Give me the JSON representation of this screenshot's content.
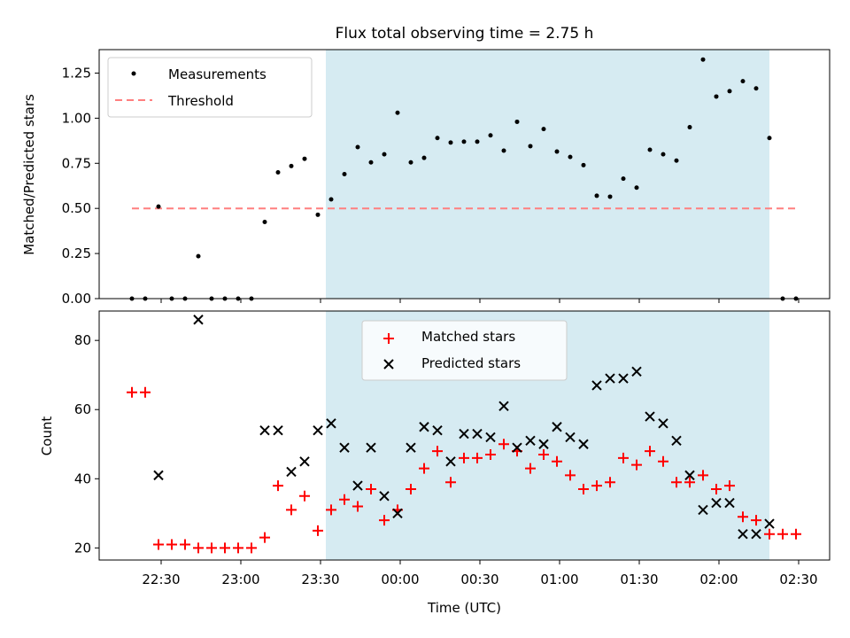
{
  "title": "Flux total observing time = 2.75 h",
  "xlabel": "Time (UTC)",
  "x_ticks": [
    "22:30",
    "23:00",
    "23:30",
    "00:00",
    "00:30",
    "01:00",
    "01:30",
    "02:00",
    "02:30"
  ],
  "colors": {
    "shade": "#add8e6",
    "measurement": "#000000",
    "threshold": "#ff7f7f",
    "matched": "#ff0000",
    "predicted": "#000000"
  },
  "chart_data": [
    {
      "type": "scatter",
      "ylabel": "Matched/Predicted stars",
      "ylim": [
        0,
        1.38
      ],
      "y_ticks": [
        "0.00",
        "0.25",
        "0.50",
        "0.75",
        "1.00",
        "1.25"
      ],
      "legend": {
        "position": "top-left",
        "entries": [
          "Measurements",
          "Threshold"
        ]
      },
      "shaded_span": [
        "23:32",
        "02:19"
      ],
      "threshold": {
        "value": 0.5,
        "x_range": [
          "22:19",
          "02:29"
        ]
      },
      "series": [
        {
          "name": "Measurements",
          "x": [
            "22:19",
            "22:24",
            "22:29",
            "22:34",
            "22:39",
            "22:44",
            "22:49",
            "22:54",
            "22:59",
            "23:04",
            "23:09",
            "23:14",
            "23:19",
            "23:24",
            "23:29",
            "23:34",
            "23:39",
            "23:44",
            "23:49",
            "23:54",
            "23:59",
            "00:04",
            "00:09",
            "00:14",
            "00:19",
            "00:24",
            "00:29",
            "00:34",
            "00:39",
            "00:44",
            "00:49",
            "00:54",
            "00:59",
            "01:04",
            "01:09",
            "01:14",
            "01:19",
            "01:24",
            "01:29",
            "01:34",
            "01:39",
            "01:44",
            "01:49",
            "01:54",
            "01:59",
            "02:04",
            "02:09",
            "02:14",
            "02:19",
            "02:24",
            "02:29"
          ],
          "values": [
            0.0,
            0.0,
            0.51,
            0.0,
            0.0,
            0.235,
            0.0,
            0.0,
            0.0,
            0.0,
            0.425,
            0.7,
            0.735,
            0.775,
            0.465,
            0.55,
            0.69,
            0.84,
            0.755,
            0.8,
            1.03,
            0.755,
            0.78,
            0.89,
            0.865,
            0.87,
            0.87,
            0.905,
            0.82,
            0.98,
            0.845,
            0.94,
            0.815,
            0.785,
            0.74,
            0.57,
            0.565,
            0.665,
            0.615,
            0.825,
            0.8,
            0.765,
            0.95,
            1.325,
            1.12,
            1.15,
            1.205,
            1.165,
            0.89,
            0.0,
            0.0
          ]
        }
      ]
    },
    {
      "type": "scatter",
      "ylabel": "Count",
      "ylim": [
        16.5,
        88.5
      ],
      "y_ticks": [
        "20",
        "40",
        "60",
        "80"
      ],
      "legend": {
        "position": "top-center",
        "entries": [
          "Matched stars",
          "Predicted stars"
        ]
      },
      "shaded_span": [
        "23:32",
        "02:19"
      ],
      "series": [
        {
          "name": "Matched stars",
          "x": [
            "22:19",
            "22:24",
            "22:29",
            "22:34",
            "22:39",
            "22:44",
            "22:49",
            "22:54",
            "22:59",
            "23:04",
            "23:09",
            "23:14",
            "23:19",
            "23:24",
            "23:29",
            "23:34",
            "23:39",
            "23:44",
            "23:49",
            "23:54",
            "23:59",
            "00:04",
            "00:09",
            "00:14",
            "00:19",
            "00:24",
            "00:29",
            "00:34",
            "00:39",
            "00:44",
            "00:49",
            "00:54",
            "00:59",
            "01:04",
            "01:09",
            "01:14",
            "01:19",
            "01:24",
            "01:29",
            "01:34",
            "01:39",
            "01:44",
            "01:49",
            "01:54",
            "01:59",
            "02:04",
            "02:09",
            "02:14",
            "02:19",
            "02:24",
            "02:29"
          ],
          "values": [
            65,
            65,
            21,
            21,
            21,
            20,
            20,
            20,
            20,
            20,
            23,
            38,
            31,
            35,
            25,
            31,
            34,
            32,
            37,
            28,
            31,
            37,
            43,
            48,
            39,
            46,
            46,
            47,
            50,
            48,
            43,
            47,
            45,
            41,
            37,
            38,
            39,
            46,
            44,
            48,
            45,
            39,
            39,
            41,
            37,
            38,
            29,
            28,
            24,
            24,
            24
          ]
        },
        {
          "name": "Predicted stars",
          "x": [
            "22:29",
            "22:44",
            "23:09",
            "23:14",
            "23:19",
            "23:24",
            "23:29",
            "23:34",
            "23:39",
            "23:44",
            "23:49",
            "23:54",
            "23:59",
            "00:04",
            "00:09",
            "00:14",
            "00:19",
            "00:24",
            "00:29",
            "00:34",
            "00:39",
            "00:44",
            "00:49",
            "00:54",
            "00:59",
            "01:04",
            "01:09",
            "01:14",
            "01:19",
            "01:24",
            "01:29",
            "01:34",
            "01:39",
            "01:44",
            "01:49",
            "01:54",
            "01:59",
            "02:04",
            "02:09",
            "02:14",
            "02:19"
          ],
          "values": [
            41,
            86,
            54,
            54,
            42,
            45,
            54,
            56,
            49,
            38,
            49,
            35,
            30,
            49,
            55,
            54,
            45,
            53,
            53,
            52,
            61,
            49,
            51,
            50,
            55,
            52,
            50,
            67,
            69,
            69,
            71,
            58,
            56,
            51,
            41,
            31,
            33,
            33,
            24,
            24,
            27
          ]
        }
      ]
    }
  ]
}
